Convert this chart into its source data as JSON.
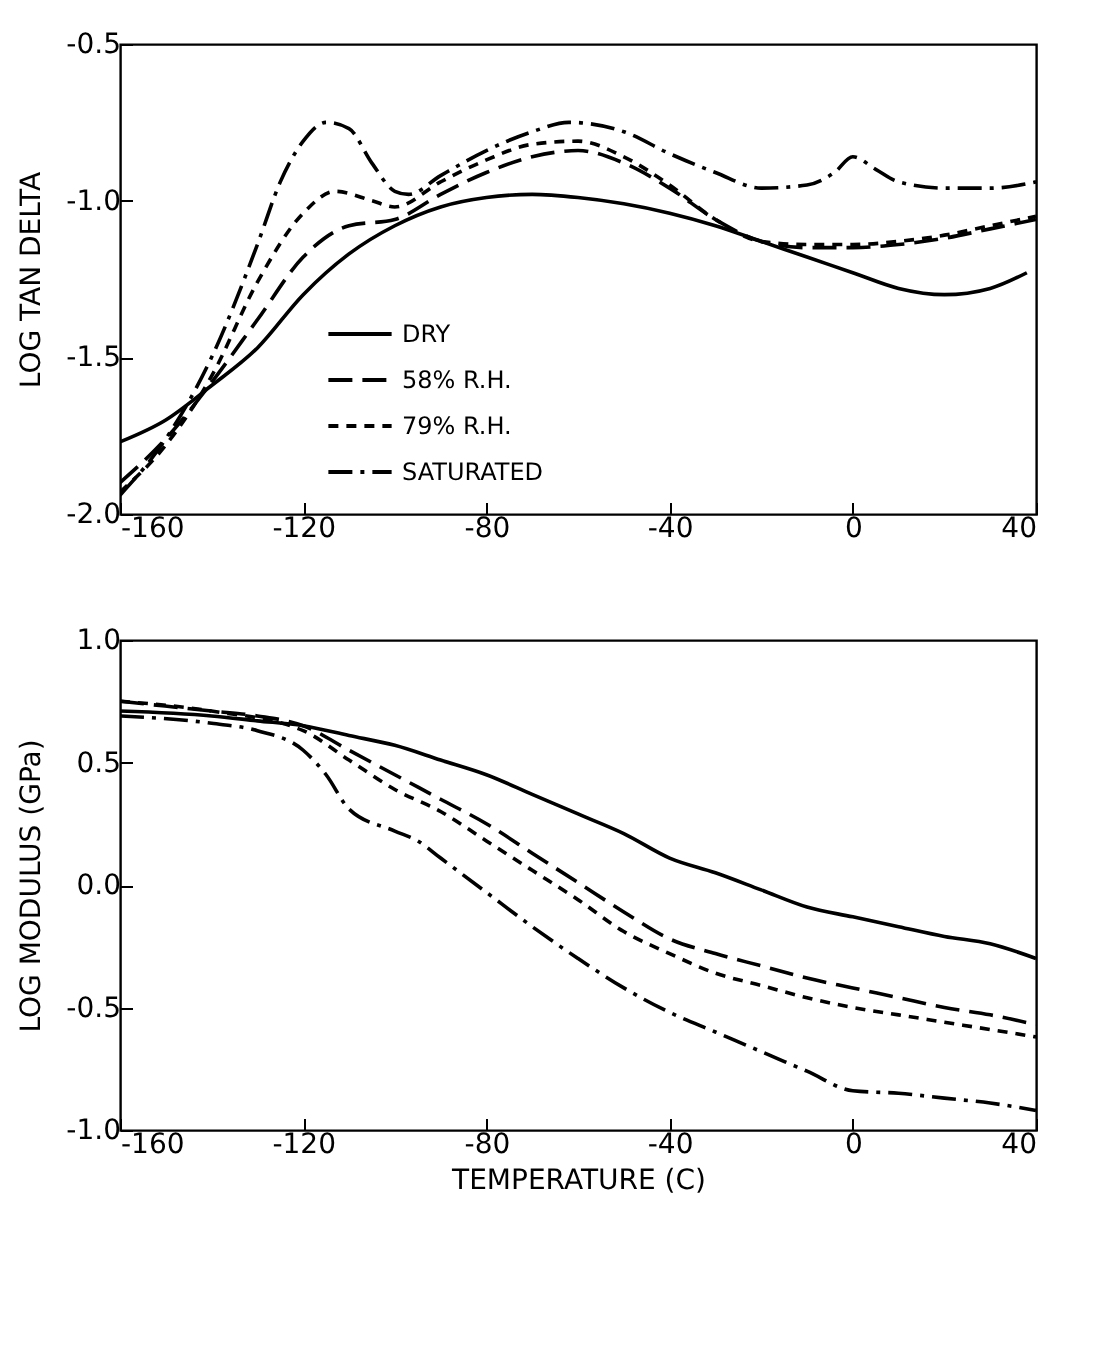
{
  "chart_data": [
    {
      "type": "line",
      "ylabel": "LOG TAN DELTA",
      "xlim": [
        -160,
        40
      ],
      "xticks": [
        -160,
        -120,
        -80,
        -40,
        0,
        40
      ],
      "ylim": [
        -2.0,
        -0.5
      ],
      "yticks": [
        {
          "value": -2.0,
          "label": "-2.0"
        },
        -1.5,
        {
          "value": -1.0,
          "label": "-1.0"
        },
        -0.5
      ],
      "grid": false,
      "legend": "bottom left",
      "marker": "none",
      "series": [
        {
          "name": "DRY",
          "color": "#000000",
          "line_style": "solid",
          "x": [
            -160,
            -150,
            -140,
            -130,
            -120,
            -110,
            -100,
            -90,
            -80,
            -70,
            -60,
            -50,
            -40,
            -30,
            -20,
            -10,
            0,
            10,
            20,
            30,
            38
          ],
          "values": [
            -1.77,
            -1.7,
            -1.59,
            -1.47,
            -1.3,
            -1.17,
            -1.08,
            -1.02,
            -0.99,
            -0.98,
            -0.99,
            -1.01,
            -1.04,
            -1.08,
            -1.13,
            -1.18,
            -1.23,
            -1.28,
            -1.3,
            -1.28,
            -1.23
          ]
        },
        {
          "name": "58% R.H.",
          "color": "#000000",
          "line_style": "dashed",
          "x": [
            -160,
            -150,
            -140,
            -130,
            -120,
            -110,
            -100,
            -90,
            -80,
            -70,
            -60,
            -50,
            -40,
            -30,
            -20,
            -10,
            0,
            10,
            20,
            30,
            40
          ],
          "values": [
            -1.9,
            -1.76,
            -1.58,
            -1.38,
            -1.18,
            -1.08,
            -1.06,
            -0.98,
            -0.91,
            -0.86,
            -0.84,
            -0.88,
            -0.96,
            -1.06,
            -1.13,
            -1.15,
            -1.15,
            -1.14,
            -1.12,
            -1.09,
            -1.06
          ]
        },
        {
          "name": "79% R.H.",
          "color": "#000000",
          "line_style": "dotted",
          "x": [
            -160,
            -150,
            -140,
            -130,
            -120,
            -113,
            -105,
            -100,
            -90,
            -80,
            -70,
            -60,
            -50,
            -40,
            -30,
            -20,
            -10,
            0,
            10,
            20,
            30,
            40
          ],
          "values": [
            -1.93,
            -1.78,
            -1.56,
            -1.26,
            -1.04,
            -0.97,
            -1.0,
            -1.02,
            -0.94,
            -0.87,
            -0.82,
            -0.81,
            -0.86,
            -0.95,
            -1.06,
            -1.13,
            -1.14,
            -1.14,
            -1.13,
            -1.11,
            -1.08,
            -1.05
          ]
        },
        {
          "name": "SATURATED",
          "color": "#000000",
          "line_style": "dashdot",
          "x": [
            -160,
            -150,
            -140,
            -130,
            -125,
            -120,
            -115,
            -110,
            -105,
            -100,
            -97,
            -90,
            -80,
            -70,
            -62,
            -50,
            -40,
            -30,
            -20,
            -10,
            -4,
            0,
            5,
            10,
            20,
            30,
            40
          ],
          "values": [
            -1.94,
            -1.76,
            -1.5,
            -1.14,
            -0.94,
            -0.81,
            -0.75,
            -0.77,
            -0.88,
            -0.97,
            -0.98,
            -0.92,
            -0.84,
            -0.78,
            -0.75,
            -0.78,
            -0.85,
            -0.91,
            -0.96,
            -0.95,
            -0.91,
            -0.86,
            -0.9,
            -0.94,
            -0.96,
            -0.96,
            -0.94
          ]
        }
      ]
    },
    {
      "type": "line",
      "xlabel": "TEMPERATURE (C)",
      "ylabel": "LOG MODULUS (GPa)",
      "xlim": [
        -160,
        40
      ],
      "xticks": [
        -160,
        -120,
        -80,
        -40,
        0,
        40
      ],
      "ylim": [
        -1.0,
        1.0
      ],
      "yticks": [
        {
          "value": -1.0,
          "label": "-1.0"
        },
        -0.5,
        {
          "value": 0,
          "label": "0.0"
        },
        0.5,
        {
          "value": 1.0,
          "label": "1.0"
        }
      ],
      "grid": false,
      "marker": "none",
      "series": [
        {
          "color": "#000000",
          "line_style": "solid",
          "x": [
            -160,
            -140,
            -130,
            -120,
            -110,
            -100,
            -90,
            -80,
            -70,
            -60,
            -50,
            -40,
            -30,
            -20,
            -10,
            0,
            10,
            20,
            30,
            40
          ],
          "values": [
            0.71,
            0.69,
            0.67,
            0.65,
            0.61,
            0.57,
            0.51,
            0.45,
            0.37,
            0.29,
            0.21,
            0.11,
            0.05,
            -0.02,
            -0.09,
            -0.13,
            -0.17,
            -0.21,
            -0.24,
            -0.3
          ]
        },
        {
          "color": "#000000",
          "line_style": "dashed",
          "x": [
            -160,
            -140,
            -130,
            -120,
            -110,
            -100,
            -90,
            -80,
            -70,
            -60,
            -50,
            -40,
            -30,
            -20,
            -10,
            0,
            10,
            20,
            30,
            40
          ],
          "values": [
            0.75,
            0.71,
            0.69,
            0.65,
            0.55,
            0.45,
            0.35,
            0.25,
            0.13,
            0.01,
            -0.11,
            -0.22,
            -0.28,
            -0.33,
            -0.38,
            -0.42,
            -0.46,
            -0.5,
            -0.53,
            -0.57
          ]
        },
        {
          "color": "#000000",
          "line_style": "dotted",
          "x": [
            -160,
            -140,
            -120,
            -110,
            -100,
            -90,
            -80,
            -70,
            -60,
            -50,
            -40,
            -30,
            -20,
            -10,
            0,
            10,
            20,
            30,
            40
          ],
          "values": [
            0.75,
            0.71,
            0.63,
            0.51,
            0.39,
            0.3,
            0.18,
            0.06,
            -0.06,
            -0.19,
            -0.28,
            -0.36,
            -0.41,
            -0.46,
            -0.5,
            -0.53,
            -0.56,
            -0.59,
            -0.62
          ]
        },
        {
          "color": "#000000",
          "line_style": "dashdot",
          "x": [
            -160,
            -140,
            -130,
            -120,
            -115,
            -110,
            -100,
            -95,
            -90,
            -80,
            -70,
            -60,
            -50,
            -40,
            -30,
            -20,
            -10,
            0,
            10,
            20,
            30,
            40
          ],
          "values": [
            0.69,
            0.66,
            0.63,
            0.55,
            0.45,
            0.31,
            0.22,
            0.18,
            0.11,
            -0.03,
            -0.17,
            -0.3,
            -0.42,
            -0.52,
            -0.6,
            -0.68,
            -0.76,
            -0.84,
            -0.85,
            -0.87,
            -0.89,
            -0.92
          ]
        }
      ]
    }
  ]
}
